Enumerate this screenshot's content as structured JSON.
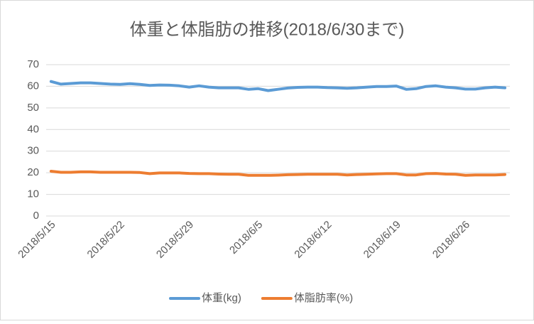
{
  "chart_data": {
    "type": "line",
    "title": "体重と体脂肪の推移(2018/6/30まで)",
    "categories": [
      "2018/5/15",
      null,
      null,
      null,
      null,
      null,
      null,
      "2018/5/22",
      null,
      null,
      null,
      null,
      null,
      null,
      "2018/5/29",
      null,
      null,
      null,
      null,
      null,
      null,
      "2018/6/5",
      null,
      null,
      null,
      null,
      null,
      null,
      "2018/6/12",
      null,
      null,
      null,
      null,
      null,
      null,
      "2018/6/19",
      null,
      null,
      null,
      null,
      null,
      null,
      "2018/6/26",
      null,
      null,
      null,
      null
    ],
    "series": [
      {
        "name": "体重(kg)",
        "color": "#5b9bd5",
        "values": [
          62.2,
          61.0,
          61.3,
          61.6,
          61.6,
          61.3,
          61.0,
          60.9,
          61.2,
          60.9,
          60.4,
          60.6,
          60.5,
          60.2,
          59.6,
          60.2,
          59.6,
          59.3,
          59.3,
          59.3,
          58.6,
          58.9,
          58.0,
          58.6,
          59.2,
          59.5,
          59.6,
          59.6,
          59.4,
          59.3,
          59.1,
          59.3,
          59.6,
          59.9,
          59.9,
          60.1,
          58.6,
          58.9,
          59.9,
          60.2,
          59.6,
          59.3,
          58.7,
          58.7,
          59.3,
          59.6,
          59.3
        ]
      },
      {
        "name": "体脂肪率(%)",
        "color": "#ed7d31",
        "values": [
          20.7,
          20.2,
          20.2,
          20.4,
          20.4,
          20.2,
          20.2,
          20.2,
          20.2,
          20.1,
          19.6,
          19.9,
          19.9,
          19.9,
          19.7,
          19.6,
          19.6,
          19.4,
          19.3,
          19.3,
          18.8,
          18.8,
          18.8,
          18.9,
          19.1,
          19.2,
          19.3,
          19.3,
          19.3,
          19.3,
          19.0,
          19.2,
          19.3,
          19.5,
          19.6,
          19.6,
          19.0,
          19.0,
          19.6,
          19.7,
          19.4,
          19.3,
          18.8,
          19.0,
          19.0,
          19.0,
          19.2
        ]
      }
    ],
    "ylim": [
      0,
      70
    ],
    "yticks": [
      0,
      10,
      20,
      30,
      40,
      50,
      60,
      70
    ],
    "grid": true,
    "legend": "bottom"
  }
}
